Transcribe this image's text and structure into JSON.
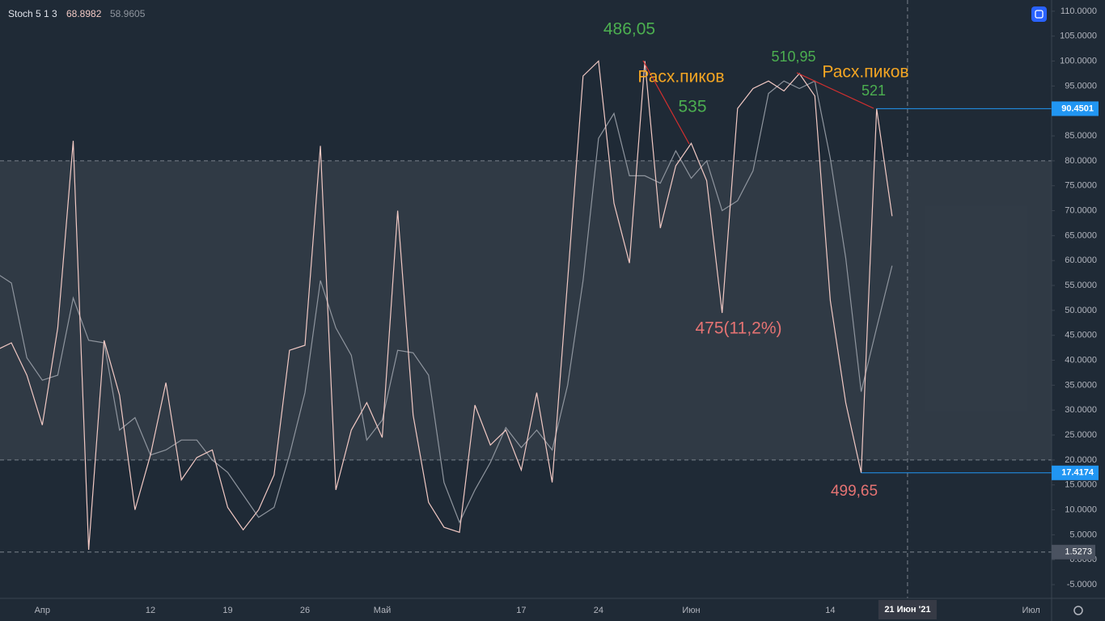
{
  "chart_data": {
    "type": "line",
    "title": "Stoch 5 1 3",
    "categories": [
      null,
      null,
      null,
      "Апр",
      null,
      null,
      null,
      null,
      null,
      null,
      "12",
      null,
      null,
      null,
      null,
      "19",
      null,
      null,
      null,
      null,
      "26",
      null,
      null,
      null,
      null,
      "Май",
      null,
      null,
      null,
      null,
      null,
      null,
      null,
      null,
      "17",
      null,
      null,
      null,
      null,
      "24",
      null,
      null,
      null,
      null,
      null,
      "Июн",
      null,
      null,
      null,
      null,
      null,
      null,
      null,
      null,
      "14",
      null,
      null,
      null,
      null,
      "21 Июн '21",
      null,
      null,
      null,
      null,
      null,
      null,
      null,
      "Июл",
      null
    ],
    "series": [
      {
        "color": "#f2c9c4",
        "values": [
          42,
          43.5,
          37,
          27,
          46.5,
          84,
          2,
          44,
          33,
          10,
          21,
          35.5,
          16,
          20.5,
          22,
          10.5,
          6,
          10,
          17,
          42,
          43,
          83,
          14,
          26,
          31.5,
          24.5,
          70,
          29,
          11.5,
          6.5,
          5.5,
          31,
          23,
          26,
          18,
          33.5,
          15.5,
          56,
          97,
          100,
          71.5,
          59.5,
          100,
          66.5,
          79,
          83.5,
          76,
          49.5,
          90.5,
          94.5,
          96,
          94,
          97.5,
          93,
          52,
          31.5,
          17.4174,
          90.4501,
          68.8982,
          null,
          null,
          null,
          null,
          null,
          null,
          null,
          null,
          null,
          null
        ]
      },
      {
        "color": "#8f959e",
        "values": [
          57.5,
          55.5,
          40.5,
          36,
          37,
          52.5,
          44,
          43.5,
          26,
          28.5,
          21,
          22,
          24,
          24,
          20,
          17.5,
          13,
          8.5,
          10.5,
          21,
          33.5,
          56,
          46.5,
          41,
          24,
          28,
          42,
          41.5,
          37,
          15.5,
          7.5,
          14,
          19.5,
          26.5,
          22.5,
          26,
          22,
          35,
          56,
          84.5,
          89.5,
          77,
          77,
          75.5,
          82,
          76.5,
          80,
          70,
          72,
          78,
          93.5,
          96,
          94.5,
          96,
          80.5,
          60.5,
          33.7,
          46.5,
          58.9605,
          null,
          null,
          null,
          null,
          null,
          null,
          null,
          null,
          null,
          null
        ]
      }
    ],
    "ylim": [
      -7.75,
      112.25
    ],
    "yticks": [
      {
        "value": -5,
        "label": "-5.0000"
      },
      {
        "value": 0,
        "label": "0.0000"
      },
      {
        "value": 5,
        "label": "5.0000"
      },
      {
        "value": 10,
        "label": "10.0000"
      },
      {
        "value": 15,
        "label": "15.0000"
      },
      {
        "value": 20,
        "label": "20.0000"
      },
      {
        "value": 25,
        "label": "25.0000"
      },
      {
        "value": 30,
        "label": "30.0000"
      },
      {
        "value": 35,
        "label": "35.0000"
      },
      {
        "value": 40,
        "label": "40.0000"
      },
      {
        "value": 45,
        "label": "45.0000"
      },
      {
        "value": 50,
        "label": "50.0000"
      },
      {
        "value": 55,
        "label": "55.0000"
      },
      {
        "value": 60,
        "label": "60.0000"
      },
      {
        "value": 65,
        "label": "65.0000"
      },
      {
        "value": 70,
        "label": "70.0000"
      },
      {
        "value": 75,
        "label": "75.0000"
      },
      {
        "value": 80,
        "label": "80.0000"
      },
      {
        "value": 85,
        "label": "85.0000"
      },
      {
        "value": 90,
        "label": "90.0000"
      },
      {
        "value": 95,
        "label": "95.0000"
      },
      {
        "value": 100,
        "label": "100.0000"
      },
      {
        "value": 105,
        "label": "105.0000"
      },
      {
        "value": 110,
        "label": "110.0000"
      }
    ],
    "bands": [
      20,
      80
    ],
    "crosshair_y": 1.5273,
    "crosshair_x": 59,
    "annotations": [
      "486,05",
      "Расх.пиков",
      "535",
      "510,95",
      "Расх.пиков",
      "521",
      "475(11,2%)",
      "499,65"
    ]
  }
}
